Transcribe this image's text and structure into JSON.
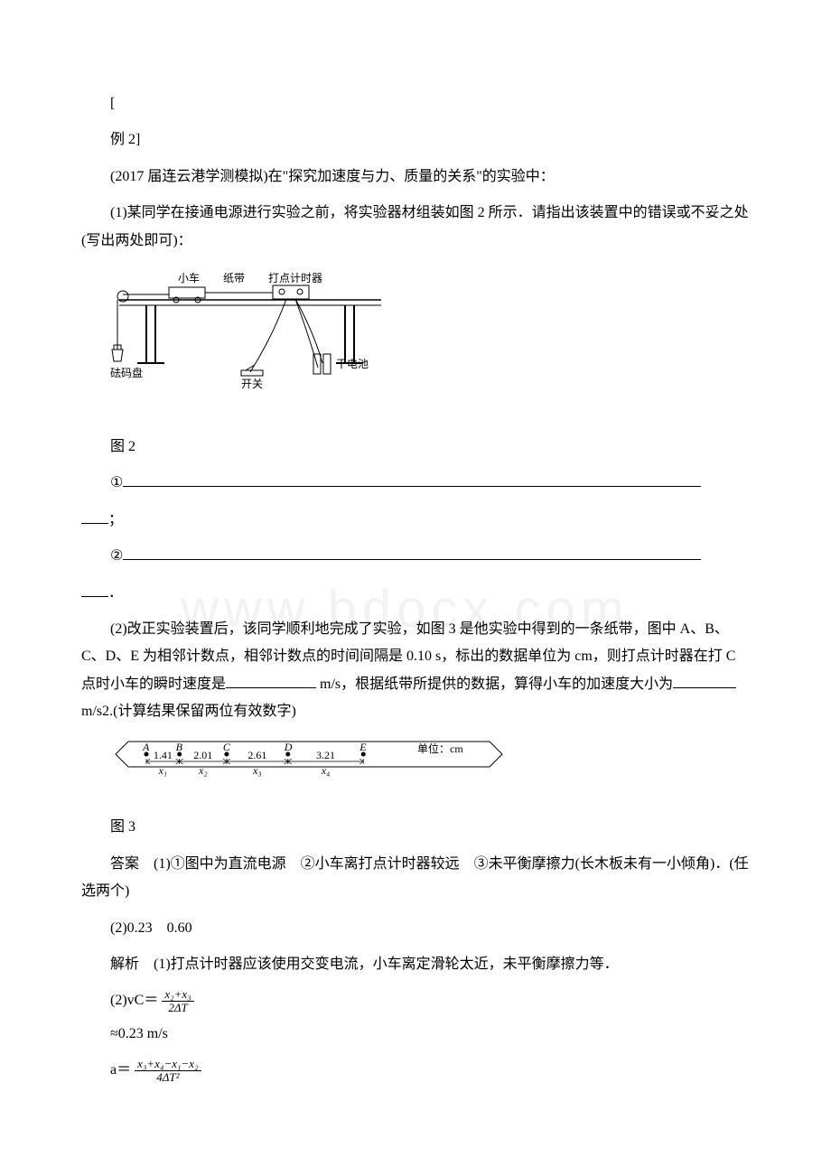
{
  "example_label": "例 2",
  "example_bracket_open": "[",
  "example_bracket_close": "]",
  "source": "(2017 届连云港学测模拟)",
  "intro": "在\"探究加速度与力、质量的关系\"的实验中：",
  "q1_stem": "(1)某同学在接通电源进行实验之前，将实验器材组装如图 2 所示．请指出该装置中的错误或不妥之处(写出两处即可)：",
  "fig2_labels": {
    "cart": "小车",
    "tape": "纸带",
    "timer": "打点计时器",
    "weights": "砝码盘",
    "battery": "干电池",
    "switch": "开关"
  },
  "fig2_caption": "图 2",
  "blank1_label": "①",
  "blank1_suffix": "；",
  "blank2_label": "②",
  "blank2_suffix": "．",
  "q2_stem_a": "(2)改正实验装置后，该同学顺利地完成了实验，如图 3 是他实验中得到的一条纸带，图中 A、B、C、D、E 为相邻计数点，相邻计数点的时间间隔是 0.10 s，标出的数据单位为 cm，则打点计时器在打 C 点时小车的瞬时速度是",
  "q2_stem_b": " m/s，根据纸带所提供的数据，算得小车的加速度大小为",
  "q2_stem_c": " m/s2.(计算结果保留两位有效数字)",
  "tape": {
    "points": [
      "A",
      "B",
      "C",
      "D",
      "E"
    ],
    "segments": [
      {
        "label": "1.41",
        "xvar": "x₁"
      },
      {
        "label": "2.01",
        "xvar": "x₂"
      },
      {
        "label": "2.61",
        "xvar": "x₃"
      },
      {
        "label": "3.21",
        "xvar": "x₄"
      }
    ],
    "unit_label": "单位：cm"
  },
  "fig3_caption": "图 3",
  "answer_label": "答案",
  "answer_text": "　(1)①图中为直流电源　②小车离打点计时器较远　③未平衡摩擦力(长木板未有一小倾角)．(任选两个)",
  "answer2": "(2)0.23　0.60",
  "analysis_label": "解析",
  "analysis_text": "　(1)打点计时器应该使用交变电流，小车离定滑轮太近，未平衡摩擦力等．",
  "formula1_prefix": "(2)vC＝",
  "formula1_num": "x₂+x₃",
  "formula1_den": "2ΔT",
  "formula1_result": "≈0.23 m/s",
  "formula2_prefix": "a＝",
  "formula2_num": "x₃+x₄−x₁−x₂",
  "formula2_den": "4ΔT²",
  "colors": {
    "text": "#000000",
    "bg": "#ffffff",
    "stroke": "#000000",
    "watermark": "#f2f2f2"
  },
  "watermark_text": "www.bdocx.com"
}
